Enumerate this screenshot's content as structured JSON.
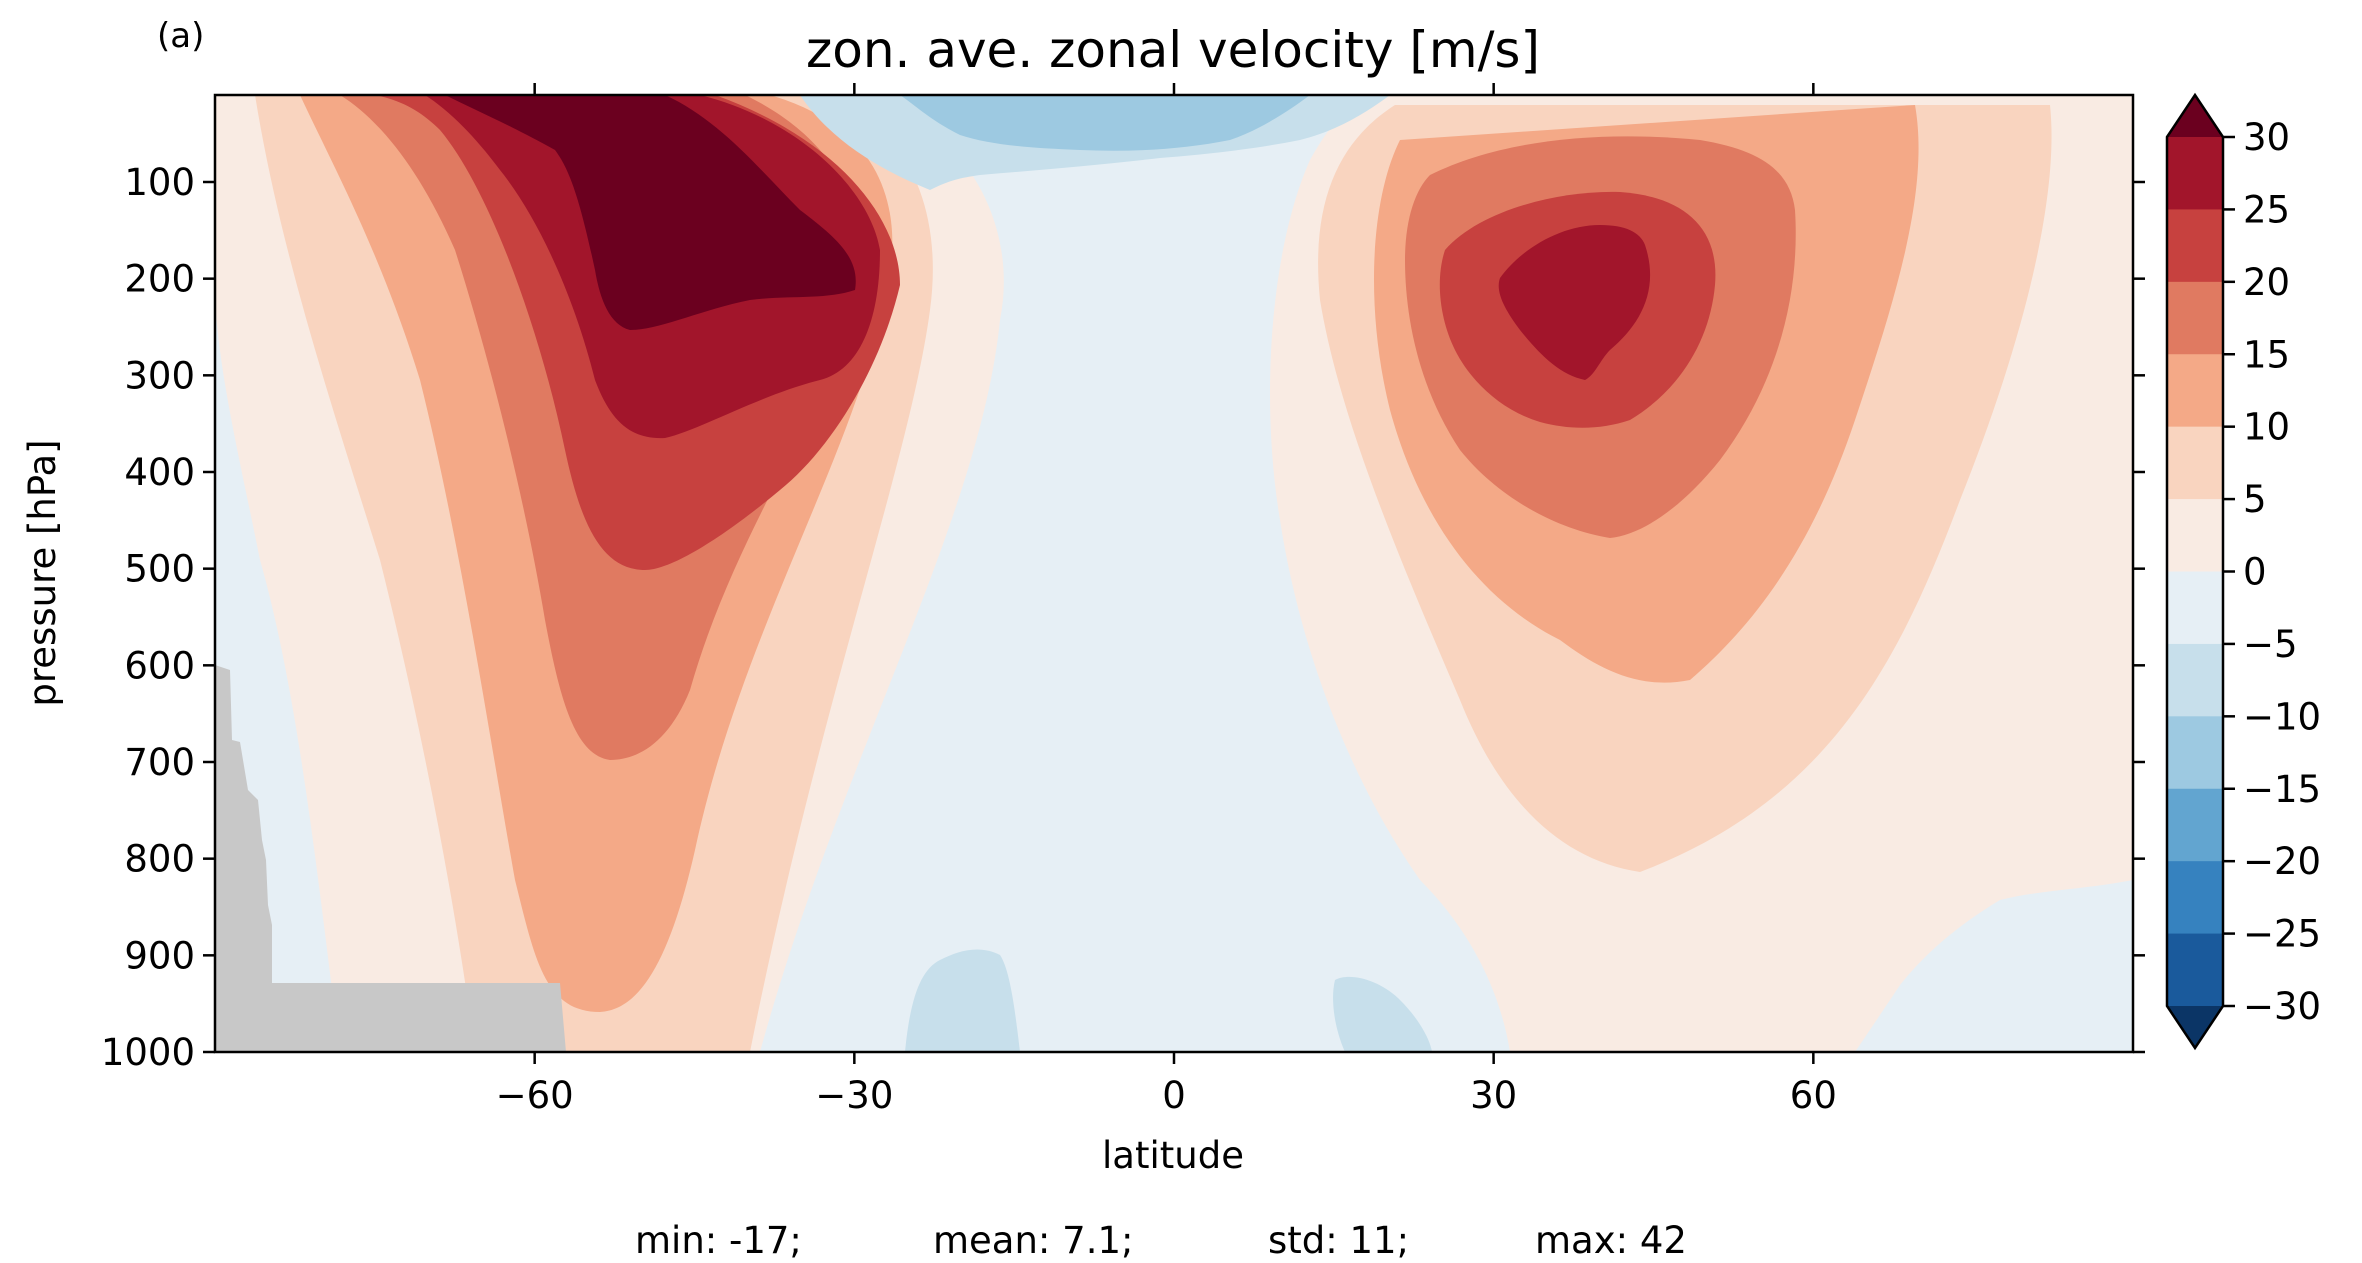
{
  "panel_label": "(a)",
  "stats": {
    "min": "min: -17;",
    "mean": "mean: 7.1;",
    "std": "std: 11;",
    "max": "max: 42"
  },
  "chart_data": {
    "type": "contourf",
    "title": "zon. ave. zonal velocity [m/s]",
    "xlabel": "latitude",
    "ylabel": "pressure [hPa]",
    "xlim": [
      -90,
      90
    ],
    "ylim": [
      1000,
      10
    ],
    "y_inverted": true,
    "xticks": [
      -60,
      -30,
      0,
      30,
      60
    ],
    "xtick_labels": [
      "−60",
      "−30",
      "0",
      "30",
      "60"
    ],
    "yticks": [
      100,
      200,
      300,
      400,
      500,
      600,
      700,
      800,
      900,
      1000
    ],
    "ytick_labels": [
      "100",
      "200",
      "300",
      "400",
      "500",
      "600",
      "700",
      "800",
      "900",
      "1000"
    ],
    "colormap": "RdBu_r",
    "levels": [
      -30,
      -25,
      -20,
      -15,
      -10,
      -5,
      0,
      5,
      10,
      15,
      20,
      25,
      30
    ],
    "colorbar_ticks": [
      30,
      25,
      20,
      15,
      10,
      5,
      0,
      -5,
      -10,
      -15,
      -20,
      -25,
      -30
    ],
    "colorbar_tick_labels": [
      "30",
      "25",
      "20",
      "15",
      "10",
      "5",
      "0",
      "−5",
      "−10",
      "−15",
      "−20",
      "−25",
      "−30"
    ],
    "colorbar_extend": "both",
    "band_colors": [
      "#0b3566",
      "#1a5a9c",
      "#3682bf",
      "#62a5d0",
      "#9dc9e1",
      "#c7dfeb",
      "#e6eff5",
      "#f9ebe3",
      "#f9d4bf",
      "#f4a987",
      "#e07a61",
      "#c7413f",
      "#a2152b",
      "#6b001f"
    ],
    "masked_color": "#c8c8c8",
    "masked_label": "topography",
    "features": [
      {
        "name": "southern jet core",
        "lat": -48,
        "pressure": 200,
        "max_band": ">30"
      },
      {
        "name": "northern jet core",
        "lat": 40,
        "pressure": 200,
        "max_band": "25-30"
      },
      {
        "name": "equatorial easterlies",
        "lat": 0,
        "pressure": 20,
        "max_band": "-15 to -10"
      }
    ]
  }
}
